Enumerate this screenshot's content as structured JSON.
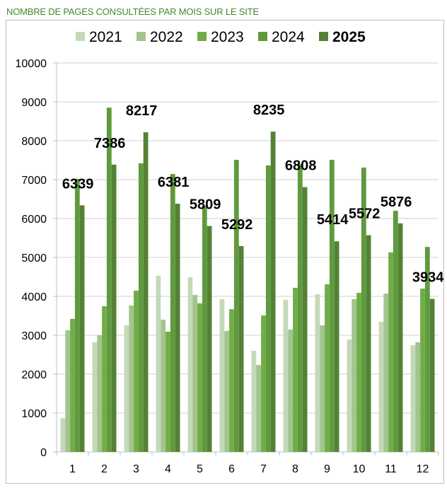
{
  "chart_data": {
    "type": "bar",
    "title": "NOMBRE DE PAGES CONSULTÉES PAR MOIS SUR LE SITE",
    "xlabel": "",
    "ylabel": "",
    "categories": [
      "1",
      "2",
      "3",
      "4",
      "5",
      "6",
      "7",
      "8",
      "9",
      "10",
      "11",
      "12"
    ],
    "ylim": [
      0,
      10000
    ],
    "yticks": [
      0,
      1000,
      2000,
      3000,
      4000,
      5000,
      6000,
      7000,
      8000,
      9000,
      10000
    ],
    "grid": true,
    "legend_position": "top",
    "series": [
      {
        "name": "2021",
        "color": "#c5d9b8",
        "values": [
          870,
          2820,
          3255,
          4530,
          4490,
          3925,
          2600,
          3910,
          4055,
          2890,
          3345,
          2745
        ]
      },
      {
        "name": "2022",
        "color": "#a3c48e",
        "values": [
          3130,
          3000,
          3765,
          3400,
          4035,
          3110,
          2235,
          3145,
          3255,
          3930,
          4070,
          2820
        ]
      },
      {
        "name": "2023",
        "color": "#70ad47",
        "values": [
          3420,
          3745,
          4145,
          3090,
          3820,
          3670,
          3510,
          4220,
          4310,
          4090,
          5130,
          4200
        ]
      },
      {
        "name": "2024",
        "color": "#5f9a3e",
        "values": [
          7020,
          8850,
          7420,
          7145,
          6330,
          7510,
          7365,
          7400,
          7510,
          7310,
          6200,
          5270
        ]
      },
      {
        "name": "2025",
        "color": "#548235",
        "bold": true,
        "labeled": true,
        "values": [
          6339,
          7386,
          8217,
          6381,
          5809,
          5292,
          8235,
          6808,
          5414,
          5572,
          5876,
          3934
        ]
      }
    ]
  }
}
